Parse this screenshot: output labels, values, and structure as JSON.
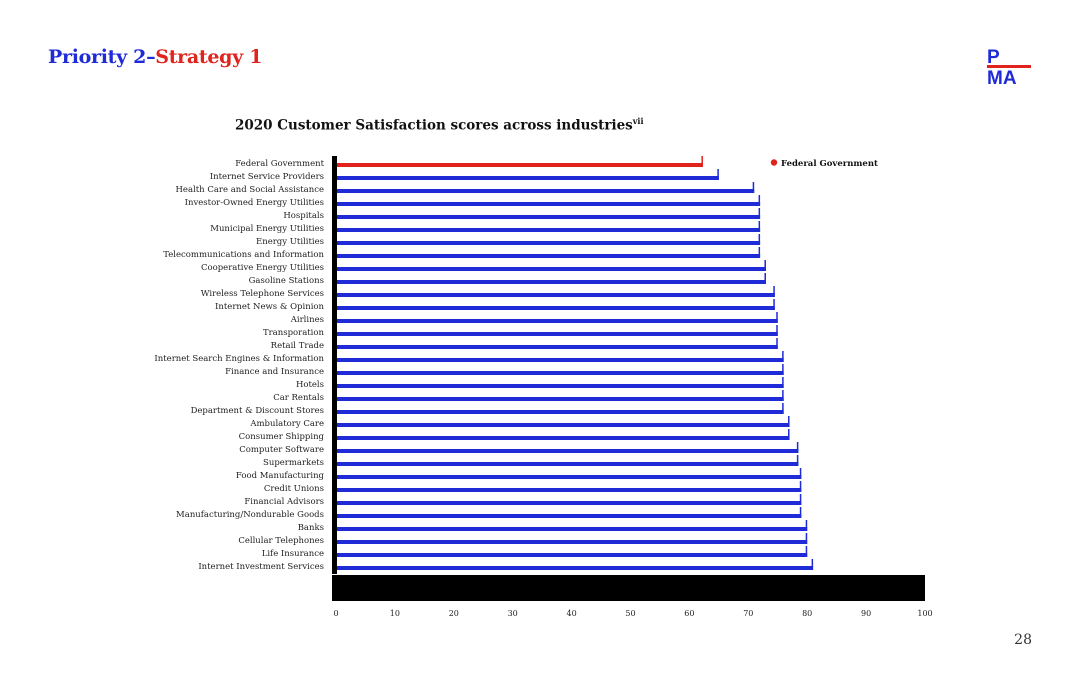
{
  "slide": {
    "title_part1": "Priority 2",
    "title_sep": "–",
    "title_part2": "Strategy 1",
    "logo_top": "P",
    "logo_bottom": "MA",
    "page_number": "28"
  },
  "colors": {
    "blue": "#1f2bd6",
    "red": "#e0231c",
    "black": "#000000"
  },
  "chart_data": {
    "type": "bar",
    "orientation": "horizontal",
    "title": "2020 Customer Satisfaction scores across industries",
    "title_sup": "vii",
    "categories": [
      "Federal Government",
      "Internet Service Providers",
      "Health Care and Social Assistance",
      "Investor-Owned Energy Utilities",
      "Hospitals",
      "Municipal Energy Utilities",
      "Energy Utilities",
      "Telecommunications and Information",
      "Cooperative Energy Utilities",
      "Gasoline Stations",
      "Wireless Telephone Services",
      "Internet News & Opinion",
      "Airlines",
      "Transporation",
      "Retail Trade",
      "Internet Search Engines & Information",
      "Finance and Insurance",
      "Hotels",
      "Car Rentals",
      "Department & Discount Stores",
      "Ambulatory Care",
      "Consumer Shipping",
      "Computer Software",
      "Supermarkets",
      "Food Manufacturing",
      "Credit Unions",
      "Financial Advisors",
      "Manufacturing/Nondurable Goods",
      "Banks",
      "Cellular Telephones",
      "Life Insurance",
      "Internet Investment Services"
    ],
    "values": [
      62.3,
      65,
      71,
      72,
      72,
      72,
      72,
      72,
      73,
      73,
      74.5,
      74.5,
      75,
      75,
      75,
      76,
      76,
      76,
      76,
      76,
      77,
      77,
      78.5,
      78.5,
      79,
      79,
      79,
      79,
      80,
      80,
      80,
      81
    ],
    "highlight_category": "Federal Government",
    "legend": {
      "label": "Federal Government",
      "placement": "top-right"
    },
    "xlim": [
      0,
      100
    ],
    "xticks": [
      0,
      10,
      20,
      30,
      40,
      50,
      60,
      70,
      80,
      90,
      100
    ],
    "xlabel": "",
    "ylabel": "",
    "grid": false
  }
}
